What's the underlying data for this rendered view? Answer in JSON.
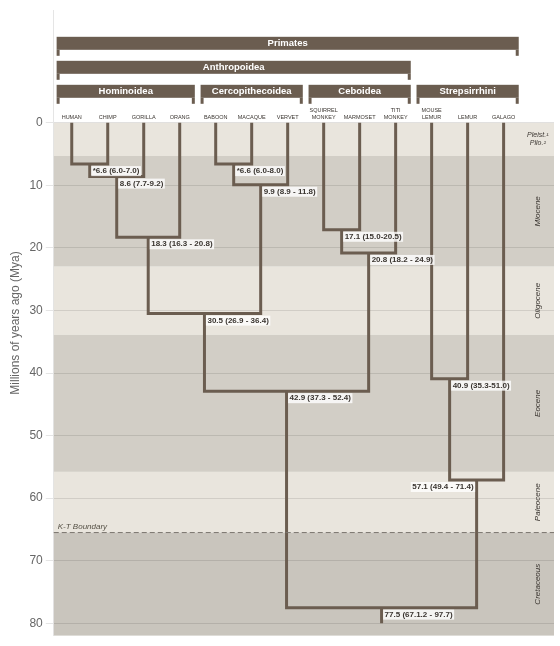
{
  "chart_data": {
    "type": "dendrogram",
    "y_label": "Millions of years ago (Mya)",
    "ylim": [
      82,
      -18
    ],
    "yticks": [
      0,
      10,
      20,
      30,
      40,
      50,
      60,
      70,
      80
    ],
    "grid": true,
    "color": "#6b5d50",
    "categories": [
      "HUMAN",
      "CHIMP",
      "GORILLA",
      "ORANG",
      "BABOON",
      "MACAQUE",
      "VERVET",
      "SQUIRREL\nMONKEY",
      "MARMOSET",
      "TITI\nMONKEY",
      "MOUSE\nLEMUR",
      "LEMUR",
      "GALAGO"
    ],
    "tree": {
      "value": 77.5,
      "label": "77.5 (67.1.2 - 97.7)",
      "stem_end": 80,
      "children": [
        {
          "value": 42.9,
          "label": "42.9 (37.3 - 52.4)",
          "children": [
            {
              "value": 30.5,
              "label": "30.5 (26.9 - 36.4)",
              "children": [
                {
                  "value": 18.3,
                  "label": "18.3 (16.3 - 20.8)",
                  "children": [
                    {
                      "value": 8.6,
                      "label": "8.6 (7.7-9.2)",
                      "children": [
                        {
                          "value": 6.6,
                          "label": "*6.6 (6.0-7.0)",
                          "children": [
                            "HUMAN",
                            "CHIMP"
                          ]
                        },
                        "GORILLA"
                      ]
                    },
                    "ORANG"
                  ]
                },
                {
                  "value": 9.9,
                  "label": "9.9 (8.9 - 11.8)",
                  "children": [
                    {
                      "value": 6.6,
                      "label": "*6.6 (6.0-8.0)",
                      "children": [
                        "BABOON",
                        "MACAQUE"
                      ]
                    },
                    "VERVET"
                  ]
                }
              ]
            },
            {
              "value": 20.8,
              "label": "20.8 (18.2 - 24.9)",
              "children": [
                {
                  "value": 17.1,
                  "label": "17.1 (15.0-20.5)",
                  "children": [
                    "SQUIRREL\nMONKEY",
                    "MARMOSET"
                  ]
                },
                "TITI\nMONKEY"
              ]
            }
          ]
        },
        {
          "value": 57.1,
          "label": "57.1 (49.4 - 71.4)",
          "children": [
            {
              "value": 40.9,
              "label": "40.9 (35.3-51.0)",
              "children": [
                "MOUSE\nLEMUR",
                "LEMUR"
              ]
            },
            "GALAGO"
          ]
        }
      ]
    },
    "bands": [
      {
        "label": "Pleist.¹\nPlio.²",
        "y_start": 0,
        "y_end": 5.3,
        "color": "#e9e5dd"
      },
      {
        "label": "Miocene",
        "y_start": 5.3,
        "y_end": 23.0,
        "color": "#d2cec6"
      },
      {
        "label": "Oligocene",
        "y_start": 23.0,
        "y_end": 33.9,
        "color": "#e9e5dd"
      },
      {
        "label": "Eocene",
        "y_start": 33.9,
        "y_end": 55.8,
        "color": "#d2cec6"
      },
      {
        "label": "Paleocene",
        "y_start": 55.8,
        "y_end": 65.5,
        "color": "#e9e5dd"
      },
      {
        "label": "Cretaceous",
        "y_start": 65.5,
        "y_end": 82,
        "color": "#c9c5bd"
      }
    ],
    "annotations": [
      {
        "y": 65.5,
        "label": "K-T Boundary"
      }
    ],
    "groups": [
      {
        "label": "Primates",
        "from": "HUMAN",
        "to": "GALAGO"
      },
      {
        "label": "Anthropoidea",
        "from": "HUMAN",
        "to": "TITI\nMONKEY"
      },
      {
        "label": "Hominoidea",
        "from": "HUMAN",
        "to": "ORANG"
      },
      {
        "label": "Cercopithecoidea",
        "from": "BABOON",
        "to": "VERVET"
      },
      {
        "label": "Ceboidea",
        "from": "SQUIRREL\nMONKEY",
        "to": "TITI\nMONKEY"
      },
      {
        "label": "Strepsirrhini",
        "from": "MOUSE\nLEMUR",
        "to": "GALAGO"
      }
    ]
  }
}
